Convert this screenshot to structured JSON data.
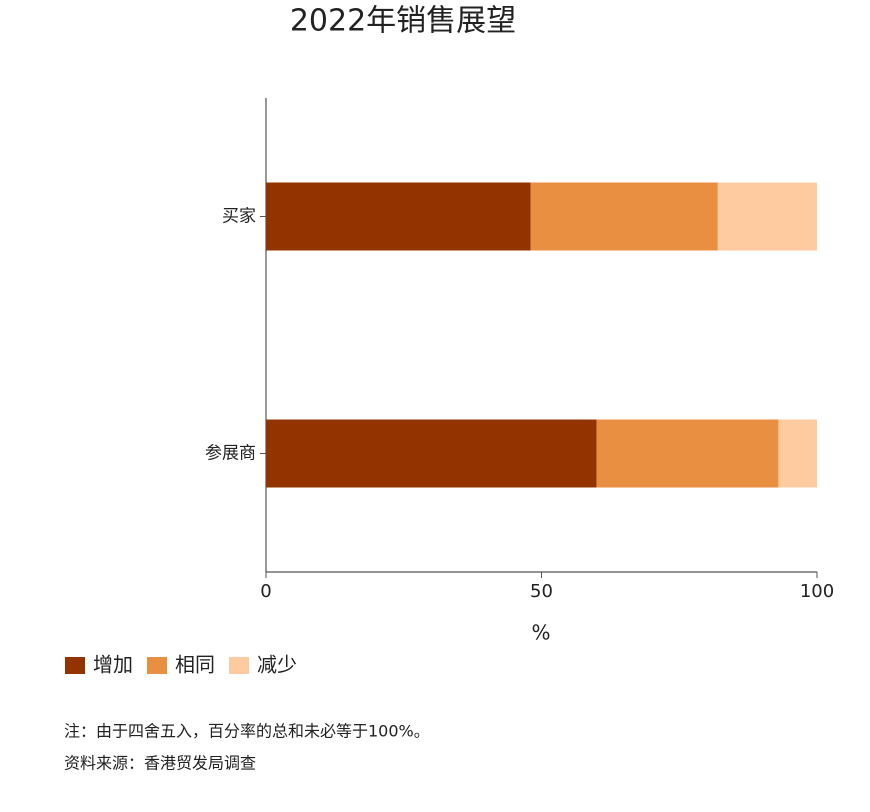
{
  "chart_data": {
    "type": "bar",
    "orientation": "horizontal",
    "stacked": true,
    "title": "2022年销售展望",
    "categories": [
      "买家",
      "参展商"
    ],
    "series": [
      {
        "name": "增加",
        "color": "#933300",
        "values": [
          48,
          60
        ]
      },
      {
        "name": "相同",
        "color": "#e98f42",
        "values": [
          34,
          33
        ]
      },
      {
        "name": "减少",
        "color": "#fecba1",
        "values": [
          18,
          7
        ]
      }
    ],
    "xlabel": "%",
    "xlim": [
      0,
      100
    ],
    "xticks": [
      0,
      50,
      100
    ],
    "notes": [
      "注：由于四舍五入，百分率的总和未必等于100%。",
      "资料来源：香港贸发局调查"
    ]
  }
}
